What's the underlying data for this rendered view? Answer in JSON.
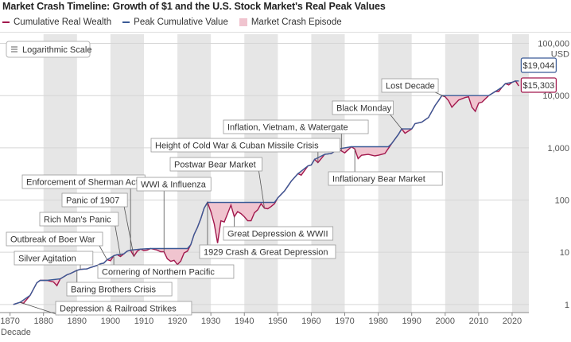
{
  "chart_data": {
    "type": "line",
    "title": "Market Crash Timeline: Growth of $1 and the U.S. Stock Market's Real Peak Values",
    "xlabel": "Decade",
    "ylabel": "",
    "y_unit": "USD",
    "y_scale": "log",
    "scale_button_label": "Logarithmic Scale",
    "ylim": [
      0.7,
      150000
    ],
    "xlim": [
      1867,
      2025
    ],
    "x_ticks": [
      1870,
      1880,
      1890,
      1900,
      1910,
      1920,
      1930,
      1940,
      1950,
      1960,
      1970,
      1980,
      1990,
      2000,
      2010,
      2020
    ],
    "y_ticks": [
      {
        "value": 1,
        "label": "1"
      },
      {
        "value": 10,
        "label": "10"
      },
      {
        "value": 100,
        "label": "100"
      },
      {
        "value": 1000,
        "label": "1,000"
      },
      {
        "value": 10000,
        "label": "10,000"
      },
      {
        "value": 100000,
        "label": "100,000"
      }
    ],
    "legend": [
      {
        "name": "Cumulative Real Wealth",
        "color": "#a2184d",
        "kind": "line"
      },
      {
        "name": "Peak Cumulative Value",
        "color": "#3a5a96",
        "kind": "line"
      },
      {
        "name": "Market Crash Episode",
        "color": "#f0c4cf",
        "kind": "box"
      }
    ],
    "colors": {
      "wealth": "#a2184d",
      "peak": "#3a5a96",
      "crash_fill": "#f0c4cf",
      "band": "#e6e6e6"
    },
    "end_labels": [
      {
        "label": "$19,044",
        "value": 19044,
        "series": "peak"
      },
      {
        "label": "$15,303",
        "value": 15303,
        "series": "wealth"
      }
    ],
    "series": [
      {
        "name": "Cumulative Real Wealth",
        "points": [
          [
            1871,
            1
          ],
          [
            1873,
            1.1
          ],
          [
            1874,
            1.05
          ],
          [
            1876,
            1.5
          ],
          [
            1878,
            2.6
          ],
          [
            1879,
            2.9
          ],
          [
            1881,
            2.9
          ],
          [
            1883,
            2.7
          ],
          [
            1884,
            2.3
          ],
          [
            1885,
            3.1
          ],
          [
            1887,
            3.7
          ],
          [
            1888,
            3.9
          ],
          [
            1890,
            4.5
          ],
          [
            1891,
            4.7
          ],
          [
            1893,
            4.8
          ],
          [
            1894,
            5.1
          ],
          [
            1896,
            5.6
          ],
          [
            1897,
            6.0
          ],
          [
            1898,
            6.2
          ],
          [
            1899,
            7.2
          ],
          [
            1900,
            6.9
          ],
          [
            1901,
            8.6
          ],
          [
            1902,
            9.0
          ],
          [
            1903,
            8.3
          ],
          [
            1904,
            9.3
          ],
          [
            1905,
            10.5
          ],
          [
            1906,
            11.0
          ],
          [
            1907,
            8.4
          ],
          [
            1908,
            10.5
          ],
          [
            1909,
            11.5
          ],
          [
            1910,
            10.8
          ],
          [
            1911,
            11.0
          ],
          [
            1912,
            11.8
          ],
          [
            1914,
            11.0
          ],
          [
            1915,
            10.2
          ],
          [
            1916,
            10.2
          ],
          [
            1917,
            7.5
          ],
          [
            1918,
            6.7
          ],
          [
            1919,
            7.0
          ],
          [
            1920,
            5.8
          ],
          [
            1921,
            6.8
          ],
          [
            1922,
            9.7
          ],
          [
            1923,
            10.5
          ],
          [
            1924,
            14.0
          ],
          [
            1925,
            22.0
          ],
          [
            1926,
            30.0
          ],
          [
            1927,
            44.0
          ],
          [
            1928,
            70.0
          ],
          [
            1929,
            90.0
          ],
          [
            1930,
            60.0
          ],
          [
            1931,
            35.0
          ],
          [
            1932,
            15.0
          ],
          [
            1933,
            40.0
          ],
          [
            1934,
            38.0
          ],
          [
            1935,
            55.0
          ],
          [
            1936,
            80.0
          ],
          [
            1937,
            48.0
          ],
          [
            1938,
            60.0
          ],
          [
            1939,
            55.0
          ],
          [
            1940,
            48.0
          ],
          [
            1941,
            40.0
          ],
          [
            1942,
            40.0
          ],
          [
            1943,
            57.0
          ],
          [
            1944,
            65.0
          ],
          [
            1945,
            85.0
          ],
          [
            1946,
            70.0
          ],
          [
            1947,
            68.0
          ],
          [
            1948,
            75.0
          ],
          [
            1949,
            85.0
          ],
          [
            1950,
            110.0
          ],
          [
            1952,
            150.0
          ],
          [
            1954,
            230.0
          ],
          [
            1956,
            320.0
          ],
          [
            1957,
            300.0
          ],
          [
            1959,
            450.0
          ],
          [
            1960,
            470.0
          ],
          [
            1961,
            600.0
          ],
          [
            1962,
            520.0
          ],
          [
            1964,
            750.0
          ],
          [
            1966,
            780.0
          ],
          [
            1968,
            950.0
          ],
          [
            1970,
            800.0
          ],
          [
            1972,
            1050.0
          ],
          [
            1973,
            950.0
          ],
          [
            1974,
            620.0
          ],
          [
            1975,
            720.0
          ],
          [
            1977,
            750.0
          ],
          [
            1979,
            700.0
          ],
          [
            1980,
            720.0
          ],
          [
            1982,
            780.0
          ],
          [
            1984,
            1200.0
          ],
          [
            1986,
            1800.0
          ],
          [
            1987,
            2300.0
          ],
          [
            1988,
            1900.0
          ],
          [
            1990,
            2300.0
          ],
          [
            1991,
            2900.0
          ],
          [
            1993,
            3100.0
          ],
          [
            1995,
            3800.0
          ],
          [
            1997,
            6500.0
          ],
          [
            1998,
            8000.0
          ],
          [
            1999,
            10000.0
          ],
          [
            2000,
            9500.0
          ],
          [
            2001,
            8000.0
          ],
          [
            2002,
            6000.0
          ],
          [
            2003,
            7000.0
          ],
          [
            2004,
            8200.0
          ],
          [
            2006,
            9200.0
          ],
          [
            2007,
            9500.0
          ],
          [
            2008,
            6000.0
          ],
          [
            2009,
            5000.0
          ],
          [
            2010,
            7200.0
          ],
          [
            2011,
            7500.0
          ],
          [
            2013,
            10000.0
          ],
          [
            2015,
            12000.0
          ],
          [
            2016,
            12000.0
          ],
          [
            2017,
            14500.0
          ],
          [
            2018,
            17000.0
          ],
          [
            2019,
            16000.0
          ],
          [
            2020,
            18000.0
          ],
          [
            2021,
            19044.0
          ],
          [
            2022,
            15303.0
          ]
        ]
      },
      {
        "name": "Peak Cumulative Value",
        "points": [
          [
            1871,
            1
          ],
          [
            1873,
            1.1
          ],
          [
            1876,
            1.5
          ],
          [
            1878,
            2.6
          ],
          [
            1879,
            2.9
          ],
          [
            1881,
            2.9
          ],
          [
            1885,
            3.1
          ],
          [
            1887,
            3.7
          ],
          [
            1888,
            3.9
          ],
          [
            1890,
            4.5
          ],
          [
            1891,
            4.7
          ],
          [
            1893,
            4.8
          ],
          [
            1894,
            5.1
          ],
          [
            1896,
            5.6
          ],
          [
            1897,
            6.0
          ],
          [
            1898,
            6.2
          ],
          [
            1899,
            7.2
          ],
          [
            1901,
            8.6
          ],
          [
            1902,
            9.0
          ],
          [
            1904,
            9.3
          ],
          [
            1905,
            10.5
          ],
          [
            1906,
            11.0
          ],
          [
            1909,
            11.5
          ],
          [
            1912,
            11.8
          ],
          [
            1923,
            11.8
          ],
          [
            1924,
            14.0
          ],
          [
            1925,
            22.0
          ],
          [
            1926,
            30.0
          ],
          [
            1927,
            44.0
          ],
          [
            1928,
            70.0
          ],
          [
            1929,
            90.0
          ],
          [
            1949,
            90.0
          ],
          [
            1950,
            110.0
          ],
          [
            1952,
            150.0
          ],
          [
            1954,
            230.0
          ],
          [
            1956,
            320.0
          ],
          [
            1959,
            450.0
          ],
          [
            1960,
            470.0
          ],
          [
            1961,
            600.0
          ],
          [
            1964,
            750.0
          ],
          [
            1966,
            780.0
          ],
          [
            1968,
            950.0
          ],
          [
            1972,
            1050.0
          ],
          [
            1983,
            1050.0
          ],
          [
            1984,
            1200.0
          ],
          [
            1986,
            1800.0
          ],
          [
            1987,
            2300.0
          ],
          [
            1990,
            2300.0
          ],
          [
            1991,
            2900.0
          ],
          [
            1993,
            3100.0
          ],
          [
            1995,
            3800.0
          ],
          [
            1997,
            6500.0
          ],
          [
            1998,
            8000.0
          ],
          [
            1999,
            10000.0
          ],
          [
            2013,
            10000.0
          ],
          [
            2015,
            12000.0
          ],
          [
            2017,
            14500.0
          ],
          [
            2018,
            17000.0
          ],
          [
            2020,
            18000.0
          ],
          [
            2021,
            19044.0
          ],
          [
            2022,
            19044.0
          ]
        ]
      }
    ],
    "annotations": [
      {
        "label": "Silver Agitation",
        "x": 1891
      },
      {
        "label": "Outbreak of Boer War",
        "x": 1899
      },
      {
        "label": "Rich Man's Panic",
        "x": 1903
      },
      {
        "label": "Panic of 1907",
        "x": 1907
      },
      {
        "label": "Enforcement of Sherman Act",
        "x": 1906
      },
      {
        "label": "WWI & Influenza",
        "x": 1916
      },
      {
        "label": "Cornering of Northern Pacific",
        "x": 1901
      },
      {
        "label": "Baring Brothers Crisis",
        "x": 1890
      },
      {
        "label": "Depression & Railroad Strikes",
        "x": 1873
      },
      {
        "label": "1929 Crash & Great Depression",
        "x": 1929
      },
      {
        "label": "Great Depression & WWII",
        "x": 1937
      },
      {
        "label": "Postwar Bear Market",
        "x": 1946
      },
      {
        "label": "Height of Cold War & Cuban Missile Crisis",
        "x": 1962
      },
      {
        "label": "Inflation, Vietnam, & Watergate",
        "x": 1969
      },
      {
        "label": "Inflationary Bear Market",
        "x": 1973
      },
      {
        "label": "Black Monday",
        "x": 1987
      },
      {
        "label": "Lost Decade",
        "x": 2000
      }
    ]
  }
}
